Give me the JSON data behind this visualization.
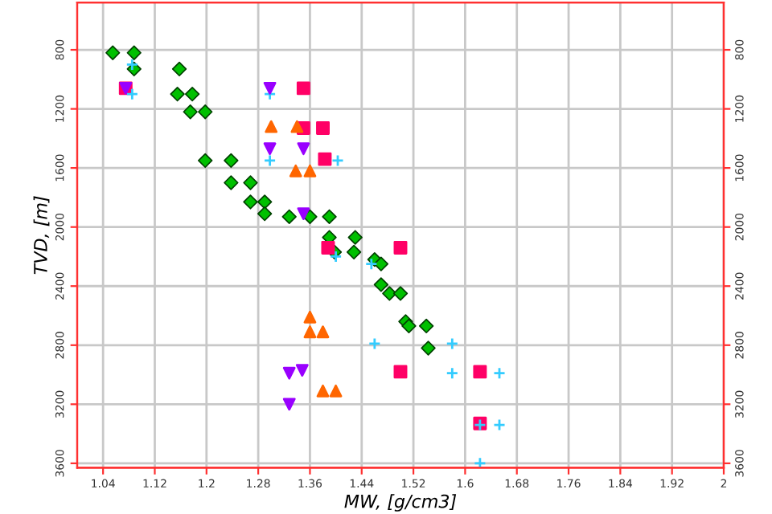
{
  "chart_data": {
    "type": "scatter",
    "xlabel": "MW, [g/cm3]",
    "ylabel": "TVD, [m]",
    "xlim": [
      1.0,
      2.0
    ],
    "xticks": [
      1.04,
      1.12,
      1.2,
      1.28,
      1.36,
      1.44,
      1.52,
      1.6,
      1.68,
      1.76,
      1.84,
      1.92,
      2
    ],
    "ylim": [
      3630,
      480
    ],
    "yticks": [
      800,
      1200,
      1600,
      2000,
      2400,
      2800,
      3200,
      3600
    ],
    "y2lim": [
      3630,
      480
    ],
    "y2ticks": [
      800,
      1200,
      1600,
      2000,
      2400,
      2800,
      3200,
      3600
    ],
    "grid": true,
    "series": [
      {
        "color": "#00c000",
        "marker": "diamond",
        "x": [
          1.055,
          1.088,
          1.088,
          1.158,
          1.155,
          1.178,
          1.175,
          1.198,
          1.198,
          1.238,
          1.238,
          1.268,
          1.268,
          1.29,
          1.29,
          1.328,
          1.36,
          1.39,
          1.39,
          1.43,
          1.398,
          1.428,
          1.46,
          1.47,
          1.47,
          1.483,
          1.5,
          1.508,
          1.513,
          1.54,
          1.543
        ],
        "values": [
          820,
          820,
          930,
          930,
          1100,
          1100,
          1220,
          1220,
          1550,
          1550,
          1700,
          1700,
          1830,
          1830,
          1910,
          1930,
          1930,
          1930,
          2070,
          2070,
          2170,
          2170,
          2220,
          2250,
          2390,
          2450,
          2450,
          2640,
          2670,
          2670,
          2820
        ]
      },
      {
        "color": "#ff0066",
        "marker": "square",
        "x": [
          1.075,
          1.35,
          1.35,
          1.38,
          1.383,
          1.388,
          1.5,
          1.5,
          1.623,
          1.623
        ],
        "values": [
          1060,
          1060,
          1330,
          1330,
          1540,
          2140,
          2140,
          2980,
          2980,
          3330
        ]
      },
      {
        "color": "#33ccff",
        "marker": "cross",
        "x": [
          1.085,
          1.085,
          1.298,
          1.298,
          1.403,
          1.4,
          1.455,
          1.46,
          1.58,
          1.58,
          1.653,
          1.623,
          1.653,
          1.623
        ],
        "values": [
          900,
          1100,
          1100,
          1550,
          1550,
          2200,
          2250,
          2790,
          2790,
          2990,
          2990,
          3340,
          3340,
          3600
        ]
      },
      {
        "color": "#9900ff",
        "marker": "triangle_down",
        "x": [
          1.075,
          1.298,
          1.298,
          1.35,
          1.35,
          1.328,
          1.348,
          1.328
        ],
        "values": [
          1060,
          1060,
          1470,
          1470,
          1910,
          2990,
          2970,
          3200
        ]
      },
      {
        "color": "#ff6600",
        "marker": "triangle",
        "x": [
          1.3,
          1.34,
          1.338,
          1.36,
          1.36,
          1.36,
          1.38,
          1.38,
          1.4
        ],
        "values": [
          1320,
          1320,
          1620,
          1620,
          2610,
          2710,
          2710,
          3110,
          3110
        ]
      }
    ]
  }
}
